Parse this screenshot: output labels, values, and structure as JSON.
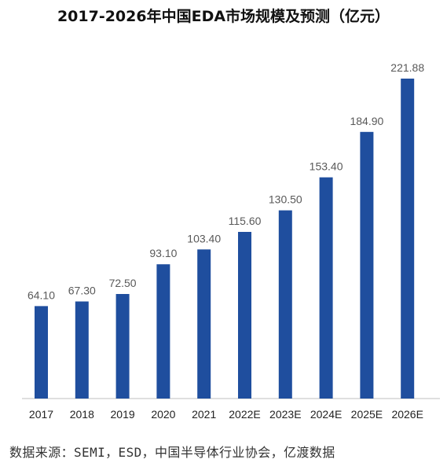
{
  "chart_data": {
    "type": "bar",
    "title": "2017-2026年中国EDA市场规模及预测（亿元）",
    "categories": [
      "2017",
      "2018",
      "2019",
      "2020",
      "2021",
      "2022E",
      "2023E",
      "2024E",
      "2025E",
      "2026E"
    ],
    "values": [
      64.1,
      67.3,
      72.5,
      93.1,
      103.4,
      115.6,
      130.5,
      153.4,
      184.9,
      221.88
    ],
    "value_labels": [
      "64.10",
      "67.30",
      "72.50",
      "93.10",
      "103.40",
      "115.60",
      "130.50",
      "153.40",
      "184.90",
      "221.88"
    ],
    "xlabel": "",
    "ylabel": "",
    "ylim": [
      0,
      250
    ],
    "grid": false,
    "legend": "none",
    "colors": {
      "bar": "#1f4e9e",
      "axis": "#bfbfbf",
      "label": "#595959",
      "tick": "#222222"
    }
  },
  "source": "数据来源：SEMI，ESD，中国半导体行业协会，亿渡数据"
}
